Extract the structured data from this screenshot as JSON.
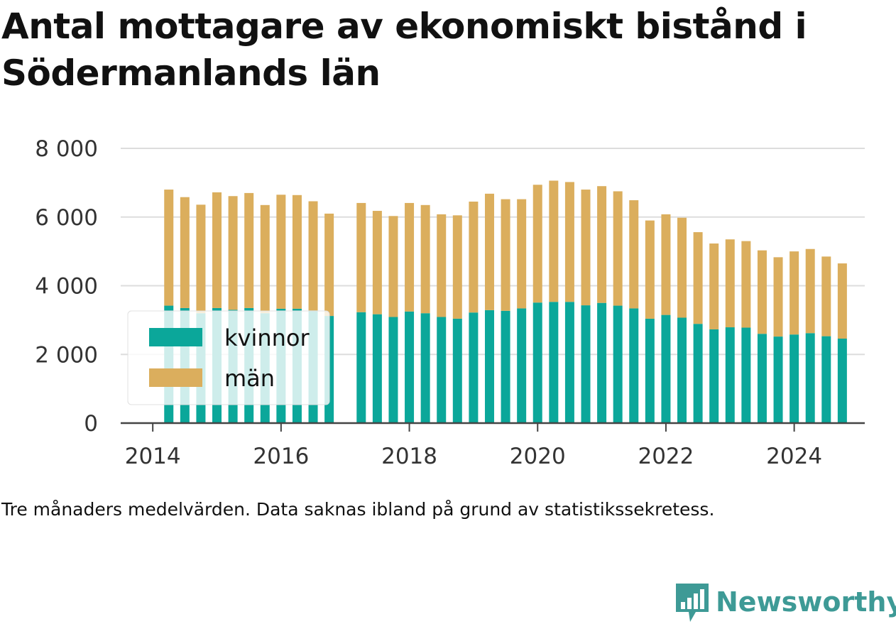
{
  "title": "Antal mottagare av ekonomiskt bistånd i Södermanlands län",
  "caption": "Tre månaders medelvärden. Data saknas ibland på grund av statistikssekretess.",
  "brand": {
    "name": "Newsworthy",
    "icon": "newsworthy-logo-icon"
  },
  "colors": {
    "kvinnor": "#0ba79a",
    "man": "#dbae5d",
    "grid": "#dddddd",
    "axis": "#444444"
  },
  "chart_data": {
    "type": "bar",
    "stacked": true,
    "title": "Antal mottagare av ekonomiskt bistånd i Södermanlands län",
    "xlabel": "",
    "ylabel": "",
    "ylim": [
      0,
      8000
    ],
    "y_ticks": [
      0,
      2000,
      4000,
      6000,
      8000
    ],
    "y_tick_labels": [
      "0",
      "2 000",
      "4 000",
      "6 000",
      "8 000"
    ],
    "x_ticks": [
      2014,
      2016,
      2018,
      2020,
      2022,
      2024
    ],
    "x_tick_labels": [
      "2014",
      "2016",
      "2018",
      "2020",
      "2022",
      "2024"
    ],
    "xlim": [
      2013.5,
      2025.1
    ],
    "grid": true,
    "legend": {
      "position": "lower-left",
      "entries": [
        "kvinnor",
        "män"
      ]
    },
    "x": [
      2014.25,
      2014.5,
      2014.75,
      2015.0,
      2015.25,
      2015.5,
      2015.75,
      2016.0,
      2016.25,
      2016.5,
      2016.75,
      2017.25,
      2017.5,
      2017.75,
      2018.0,
      2018.25,
      2018.5,
      2018.75,
      2019.0,
      2019.25,
      2019.5,
      2019.75,
      2020.0,
      2020.25,
      2020.5,
      2020.75,
      2021.0,
      2021.25,
      2021.5,
      2021.75,
      2022.0,
      2022.25,
      2022.5,
      2022.75,
      2023.0,
      2023.25,
      2023.5,
      2023.75,
      2024.0,
      2024.25,
      2024.5,
      2024.75
    ],
    "series": [
      {
        "name": "kvinnor",
        "values": [
          3420,
          3350,
          3200,
          3350,
          3300,
          3350,
          3200,
          3330,
          3330,
          3280,
          3120,
          3230,
          3170,
          3090,
          3250,
          3200,
          3090,
          3040,
          3220,
          3290,
          3270,
          3340,
          3510,
          3530,
          3530,
          3430,
          3500,
          3420,
          3340,
          3040,
          3150,
          3070,
          2890,
          2730,
          2790,
          2780,
          2600,
          2520,
          2580,
          2620,
          2530,
          2460
        ]
      },
      {
        "name": "män",
        "values": [
          3380,
          3230,
          3160,
          3370,
          3310,
          3350,
          3150,
          3320,
          3310,
          3180,
          2980,
          3180,
          3010,
          2940,
          3160,
          3150,
          2990,
          3010,
          3230,
          3390,
          3250,
          3180,
          3430,
          3530,
          3490,
          3370,
          3400,
          3330,
          3150,
          2860,
          2930,
          2910,
          2670,
          2500,
          2560,
          2520,
          2430,
          2310,
          2420,
          2450,
          2320,
          2190
        ]
      }
    ]
  }
}
